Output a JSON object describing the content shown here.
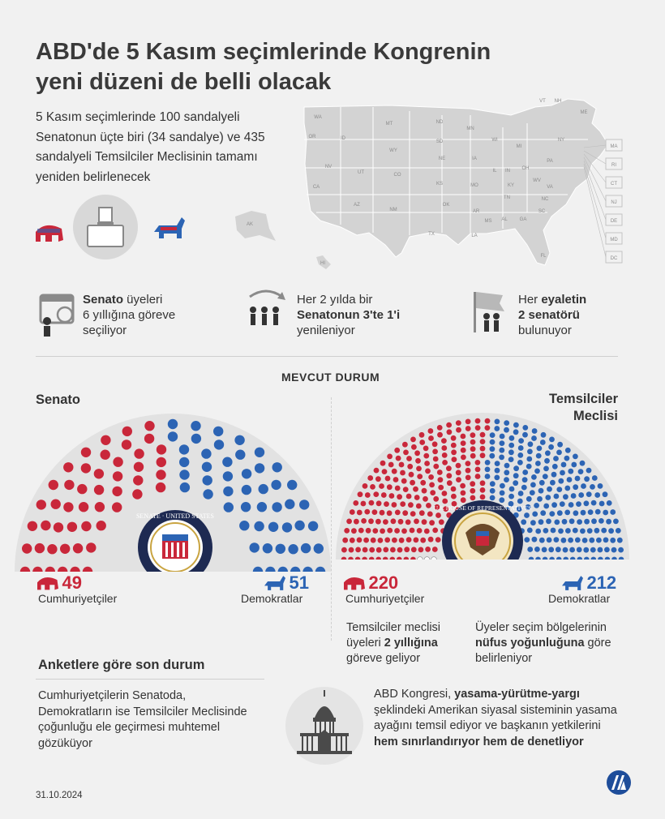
{
  "title_line1": "ABD'de 5 Kasım seçimlerinde Kongrenin",
  "title_line2": "yeni düzeni de belli olacak",
  "intro": "5 Kasım seçimlerinde 100 sandalyeli Senatonun üçte biri (34 sandalye) ve 435 sandalyeli Temsilciler Meclisinin tamamı yeniden belirlenecek",
  "map_states": [
    "WA",
    "OR",
    "ID",
    "MT",
    "ND",
    "MN",
    "WI",
    "MI",
    "NY",
    "VT",
    "NH",
    "ME",
    "SD",
    "WY",
    "NE",
    "IA",
    "IL",
    "IN",
    "OH",
    "PA",
    "NV",
    "UT",
    "CO",
    "KS",
    "MO",
    "KY",
    "WV",
    "VA",
    "CA",
    "AZ",
    "NM",
    "OK",
    "AR",
    "TN",
    "NC",
    "SC",
    "MS",
    "AL",
    "GA",
    "TX",
    "LA",
    "FL",
    "AK",
    "HI"
  ],
  "map_callouts": [
    "MA",
    "RI",
    "CT",
    "NJ",
    "DE",
    "MD",
    "DC"
  ],
  "facts": [
    {
      "pre": "",
      "bold": "Senato",
      "post": " üyeleri",
      "line2": "6 yıllığına göreve",
      "line3": "seçiliyor"
    },
    {
      "line1": "Her 2 yılda bir",
      "bold": "Senatonun 3'te 1'i",
      "line3": "yenileniyor"
    },
    {
      "pre": "Her ",
      "bold": "eyaletin",
      "bold2": "2 senatörü",
      "line3": "bulunuyor"
    }
  ],
  "section_title": "MEVCUT DURUM",
  "senate_label": "Senato",
  "house_label_line1": "Temsilciler",
  "house_label_line2": "Meclisi",
  "senate_seal_text": "SENATE · UNITED STATES",
  "house_seal_text": "U.S. HOUSE OF REPRESENTATIVES",
  "chart_data": [
    {
      "type": "parliament",
      "title": "Senato",
      "series": [
        {
          "name": "Cumhuriyetçiler",
          "values": [
            49
          ],
          "color": "#c9273a"
        },
        {
          "name": "Demokratlar",
          "values": [
            51
          ],
          "color": "#2c64b4"
        }
      ],
      "total": 100
    },
    {
      "type": "parliament",
      "title": "Temsilciler Meclisi",
      "series": [
        {
          "name": "Cumhuriyetçiler",
          "values": [
            220
          ],
          "color": "#c9273a"
        },
        {
          "name": "Demokratlar",
          "values": [
            212
          ],
          "color": "#2c64b4"
        },
        {
          "name": "",
          "values": [
            3
          ],
          "color": "#ffffff"
        }
      ],
      "total": 435
    }
  ],
  "senate_rep_count": "49",
  "senate_dem_count": "51",
  "house_rep_count": "220",
  "house_dem_count": "212",
  "rep_label": "Cumhuriyetçiler",
  "dem_label": "Demokratlar",
  "house_note_left": {
    "l1": "Temsilciler meclisi",
    "l2a": "üyeleri ",
    "l2b": "2 yıllığına",
    "l3": "göreve geliyor"
  },
  "house_note_right": {
    "l1": "Üyeler seçim bölgelerinin",
    "l2a": "nüfus yoğunluğuna",
    "l2b": " göre",
    "l3": "belirleniyor"
  },
  "poll_title": "Anketlere göre son durum",
  "poll_text": "Cumhuriyetçilerin Senatoda, Demokratların ise Temsilciler Meclisinde çoğunluğu ele geçirmesi muhtemel gözüküyor",
  "congress_text": {
    "a": "ABD Kongresi, ",
    "b": "yasama-yürütme-yargı",
    "c": " şeklindeki Amerikan siyasal sisteminin yasama ayağını temsil ediyor ve başkanın yetkilerini ",
    "d": "hem sınırlandırıyor hem de denetliyor"
  },
  "date": "31.10.2024",
  "logo": "AA",
  "colors": {
    "red": "#c9273a",
    "blue": "#2c64b4",
    "map": "#d3d3d3"
  }
}
